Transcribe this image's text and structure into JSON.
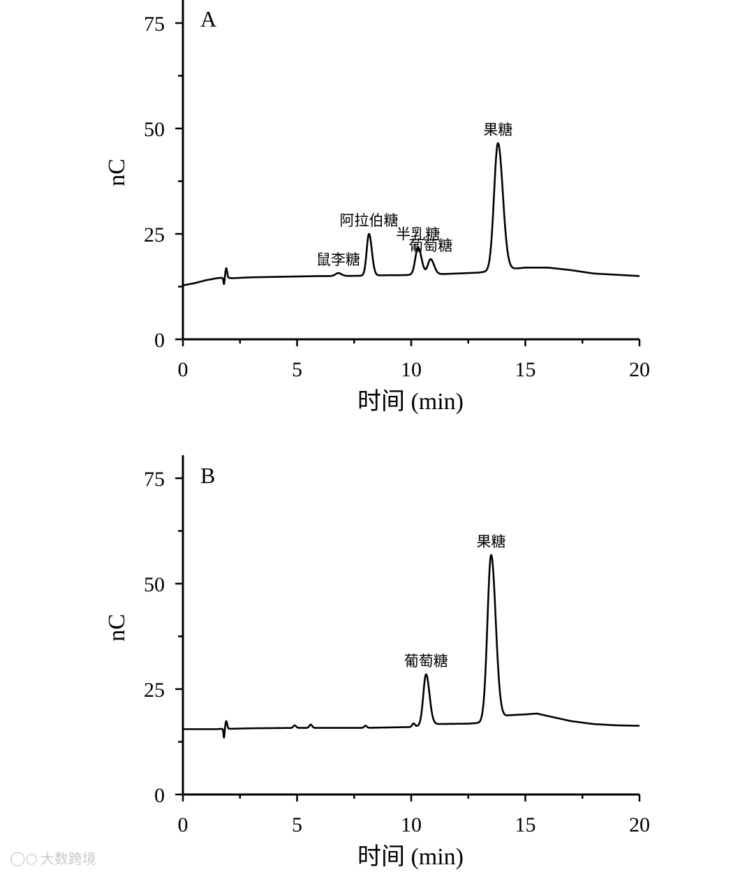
{
  "watermark": {
    "text": "大数跨境",
    "icon": "bubble-logo-icon"
  },
  "colors": {
    "line": "#000000",
    "background": "#ffffff",
    "watermark": "#c9c9c9"
  },
  "chart_data": [
    {
      "type": "line",
      "panel_label": "A",
      "xlabel": "时间 (min)",
      "ylabel": "nC",
      "xlim": [
        0,
        20
      ],
      "ylim": [
        0,
        80
      ],
      "xticks": [
        0,
        5,
        10,
        15,
        20
      ],
      "yticks": [
        0,
        25,
        50,
        75
      ],
      "grid": false,
      "baseline": {
        "x": [
          0,
          0.5,
          1.0,
          1.5,
          1.75,
          2.2,
          3,
          4,
          5,
          6,
          7,
          8,
          9,
          9.5,
          11.5,
          12,
          12.9,
          14.6,
          15,
          16,
          17,
          18,
          19,
          20
        ],
        "y": [
          12.8,
          13.3,
          14.0,
          14.5,
          14.6,
          14.5,
          14.7,
          14.8,
          14.9,
          15.0,
          15.0,
          15.1,
          15.2,
          15.2,
          15.5,
          15.6,
          15.8,
          16.8,
          17.0,
          17.0,
          16.4,
          15.6,
          15.3,
          15.0
        ]
      },
      "artifact": {
        "x": 1.8,
        "down": 1.6,
        "up": 2.3
      },
      "peaks": [
        {
          "name": "鼠李糖",
          "x": 6.8,
          "y": 15.7,
          "width": 0.12
        },
        {
          "name": "阿拉伯糖",
          "x": 8.15,
          "y": 25.0,
          "width": 0.1
        },
        {
          "name": "半乳糖",
          "x": 10.3,
          "y": 21.8,
          "width": 0.12
        },
        {
          "name": "葡萄糖",
          "x": 10.85,
          "y": 19.0,
          "width": 0.12
        },
        {
          "name": "果糖",
          "x": 13.8,
          "y": 46.5,
          "width": 0.17
        }
      ]
    },
    {
      "type": "line",
      "panel_label": "B",
      "xlabel": "时间 (min)",
      "ylabel": "nC",
      "xlim": [
        0,
        20
      ],
      "ylim": [
        0,
        80
      ],
      "xticks": [
        0,
        5,
        10,
        15,
        20
      ],
      "yticks": [
        0,
        25,
        50,
        75
      ],
      "grid": false,
      "baseline": {
        "x": [
          0,
          1.5,
          1.75,
          2.2,
          3,
          5,
          8,
          10,
          10.4,
          11.0,
          12.5,
          13.0,
          14.3,
          15,
          15.5,
          16,
          17,
          18,
          19,
          20
        ],
        "y": [
          15.5,
          15.5,
          15.6,
          15.6,
          15.7,
          15.8,
          15.8,
          16.0,
          16.3,
          16.7,
          16.8,
          17.0,
          18.8,
          19.0,
          19.2,
          18.6,
          17.4,
          16.7,
          16.4,
          16.3
        ]
      },
      "artifact": {
        "x": 1.8,
        "down": 2.2,
        "up": 1.8
      },
      "small_bumps": [
        {
          "x": 4.9,
          "h": 0.6
        },
        {
          "x": 5.6,
          "h": 0.8
        },
        {
          "x": 8.0,
          "h": 0.5
        },
        {
          "x": 10.1,
          "h": 0.8
        }
      ],
      "peaks": [
        {
          "name": "葡萄糖",
          "x": 10.65,
          "y": 28.5,
          "width": 0.12
        },
        {
          "name": "果糖",
          "x": 13.5,
          "y": 56.8,
          "width": 0.16
        }
      ]
    }
  ]
}
